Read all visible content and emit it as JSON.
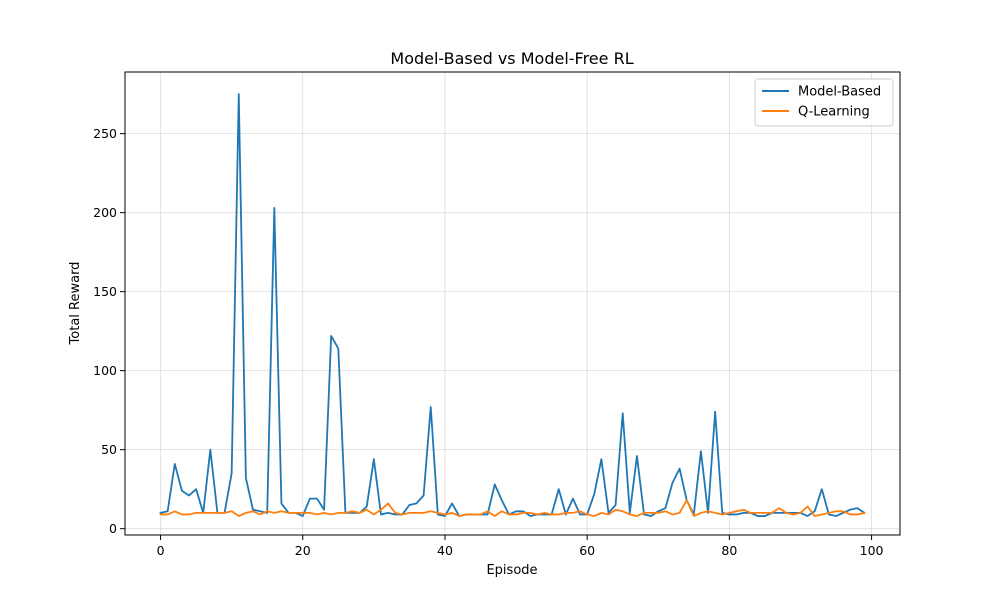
{
  "chart_data": {
    "type": "line",
    "title": "Model-Based vs Model-Free RL",
    "xlabel": "Episode",
    "ylabel": "Total Reward",
    "xlim": [
      -5,
      104
    ],
    "ylim": [
      -4,
      289
    ],
    "xticks": [
      0,
      20,
      40,
      60,
      80,
      100
    ],
    "yticks": [
      0,
      50,
      100,
      150,
      200,
      250
    ],
    "grid": true,
    "legend_position": "top-right",
    "x": [
      0,
      1,
      2,
      3,
      4,
      5,
      6,
      7,
      8,
      9,
      10,
      11,
      12,
      13,
      14,
      15,
      16,
      17,
      18,
      19,
      20,
      21,
      22,
      23,
      24,
      25,
      26,
      27,
      28,
      29,
      30,
      31,
      32,
      33,
      34,
      35,
      36,
      37,
      38,
      39,
      40,
      41,
      42,
      43,
      44,
      45,
      46,
      47,
      48,
      49,
      50,
      51,
      52,
      53,
      54,
      55,
      56,
      57,
      58,
      59,
      60,
      61,
      62,
      63,
      64,
      65,
      66,
      67,
      68,
      69,
      70,
      71,
      72,
      73,
      74,
      75,
      76,
      77,
      78,
      79,
      80,
      81,
      82,
      83,
      84,
      85,
      86,
      87,
      88,
      89,
      90,
      91,
      92,
      93,
      94,
      95,
      96,
      97,
      98,
      99
    ],
    "series": [
      {
        "name": "Model-Based",
        "color": "#1f77b4",
        "values": [
          10,
          11,
          41,
          24,
          21,
          25,
          10,
          50,
          10,
          10,
          35,
          275,
          32,
          12,
          11,
          10,
          203,
          16,
          10,
          10,
          8,
          19,
          19,
          12,
          122,
          114,
          10,
          10,
          10,
          14,
          44,
          9,
          10,
          9,
          9,
          15,
          16,
          21,
          77,
          9,
          8,
          16,
          8,
          9,
          9,
          9,
          9,
          28,
          18,
          9,
          11,
          11,
          8,
          9,
          9,
          9,
          25,
          9,
          19,
          9,
          9,
          22,
          44,
          10,
          15,
          73,
          10,
          46,
          9,
          8,
          11,
          13,
          29,
          38,
          18,
          9,
          49,
          10,
          74,
          10,
          9,
          9,
          10,
          10,
          8,
          8,
          10,
          10,
          10,
          10,
          10,
          8,
          11,
          25,
          9,
          8,
          10,
          12,
          13,
          10
        ]
      },
      {
        "name": "Q-Learning",
        "color": "#ff7f0e",
        "values": [
          9,
          9,
          11,
          9,
          9,
          10,
          10,
          10,
          10,
          10,
          11,
          8,
          10,
          11,
          9,
          11,
          10,
          11,
          10,
          10,
          10,
          10,
          9,
          10,
          9,
          10,
          10,
          11,
          10,
          12,
          9,
          12,
          16,
          10,
          9,
          10,
          10,
          10,
          11,
          10,
          9,
          10,
          8,
          9,
          9,
          9,
          11,
          8,
          11,
          9,
          9,
          10,
          10,
          9,
          10,
          9,
          9,
          10,
          10,
          11,
          9,
          8,
          10,
          9,
          12,
          11,
          9,
          8,
          10,
          10,
          10,
          11,
          9,
          10,
          18,
          8,
          10,
          11,
          10,
          9,
          10,
          11,
          12,
          10,
          10,
          10,
          10,
          13,
          10,
          9,
          10,
          14,
          8,
          9,
          10,
          11,
          11,
          9,
          9,
          10
        ]
      }
    ]
  }
}
